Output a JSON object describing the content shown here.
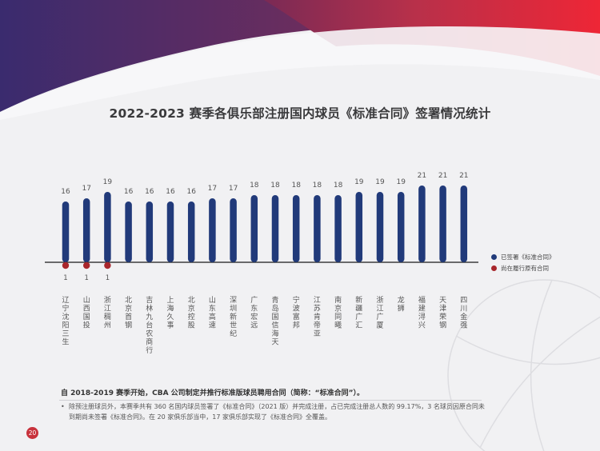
{
  "title": "2022-2023 赛季各俱乐部注册国内球员《标准合同》签署情况统计",
  "legend": {
    "signed": "已签署《标准合同》",
    "old_contract": "尚在履行原有合同"
  },
  "colors": {
    "signed": "#213a7a",
    "old_contract": "#a8262c",
    "accent_red": "#e8263a",
    "accent_purple": "#4b2d66"
  },
  "chart_data": {
    "type": "bar",
    "categories": [
      "辽宁沈阳三生",
      "山西国投",
      "浙江稠州",
      "北京首钢",
      "吉林九台农商行",
      "上海久事",
      "北京控股",
      "山东高速",
      "深圳新世纪",
      "广东宏远",
      "青岛国信海天",
      "宁波富邦",
      "江苏肯帝亚",
      "南京同曦",
      "新疆广汇",
      "浙江广厦",
      "龙狮",
      "福建浔兴",
      "天津荣钢",
      "四川金强"
    ],
    "series": [
      {
        "name": "已签署《标准合同》",
        "values": [
          16,
          17,
          19,
          16,
          16,
          16,
          16,
          17,
          17,
          18,
          18,
          18,
          18,
          18,
          19,
          19,
          19,
          21,
          21,
          21
        ]
      },
      {
        "name": "尚在履行原有合同",
        "values": [
          1,
          1,
          1,
          0,
          0,
          0,
          0,
          0,
          0,
          0,
          0,
          0,
          0,
          0,
          0,
          0,
          0,
          0,
          0,
          0
        ]
      }
    ],
    "value_labels": [
      "16",
      "17",
      "19",
      "16",
      "16",
      "16",
      "16",
      "17",
      "17",
      "18",
      "18",
      "18",
      "18",
      "18",
      "19",
      "19",
      "19",
      "21",
      "21",
      "21"
    ],
    "old_labels": [
      "1",
      "1",
      "1"
    ]
  },
  "footer": {
    "heading": "自 2018-2019 赛季开始，CBA 公司制定并推行标准版球员聘用合同（简称：“标准合同”）。",
    "bullet": "•",
    "note": "除预注册球员外，本赛季共有 360 名国内球员签署了《标准合同》（2021 版）并完成注册，占已完成注册总人数的 99.17%，3 名球员因原合同未到期尚未签署《标准合同》。在 20 家俱乐部当中，17 家俱乐部实现了《标准合同》全覆盖。"
  },
  "page_number": "20"
}
